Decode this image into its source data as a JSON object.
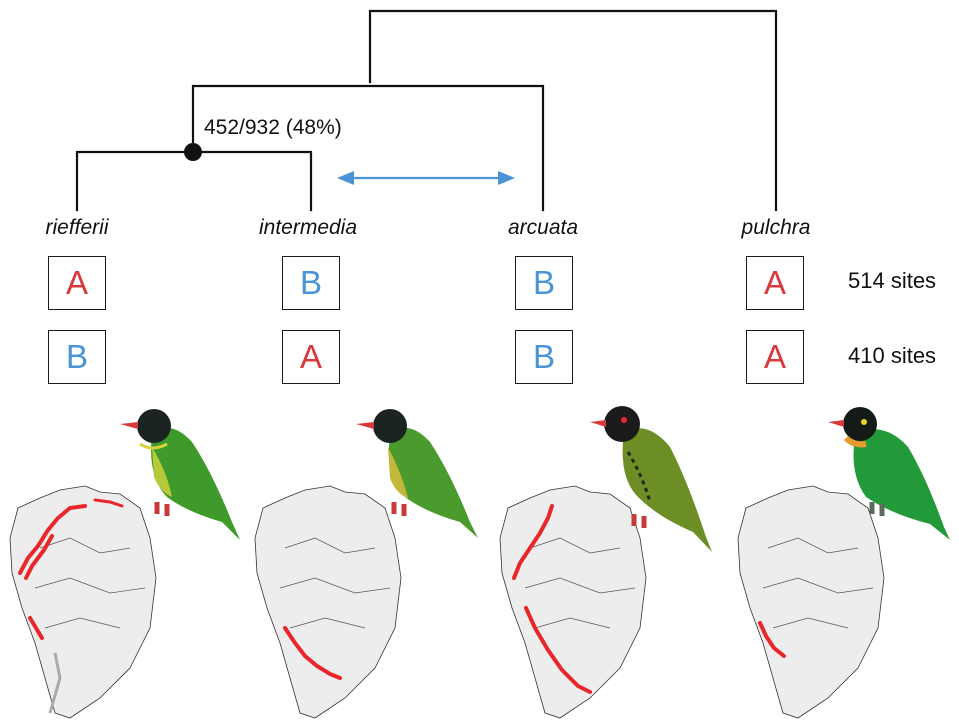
{
  "node_support": "452/932 (48%)",
  "taxa": [
    {
      "name": "riefferii",
      "alleles": [
        "A",
        "B"
      ]
    },
    {
      "name": "intermedia",
      "alleles": [
        "B",
        "A"
      ]
    },
    {
      "name": "arcuata",
      "alleles": [
        "B",
        "B"
      ]
    },
    {
      "name": "pulchra",
      "alleles": [
        "A",
        "A"
      ]
    }
  ],
  "site_rows": [
    "514 sites",
    "410 sites"
  ],
  "colors": {
    "A": "#d8393b",
    "B": "#4a94d6",
    "tree": "#111111",
    "arrow": "#4a94d6",
    "range": "#e8262b"
  },
  "icons": [
    "tree-node-dot",
    "double-headed-arrow",
    "bird-illustration",
    "range-map"
  ]
}
